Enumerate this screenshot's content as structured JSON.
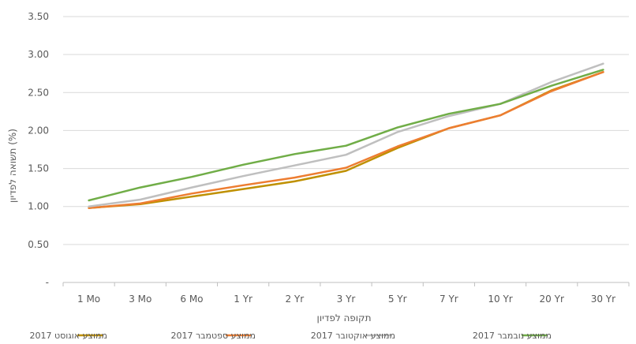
{
  "chart_data": {
    "type": "line",
    "xlabel": "תקופה לפדיון",
    "ylabel": "תשואה לפדיון (%)",
    "categories": [
      "1 Mo",
      "3 Mo",
      "6 Mo",
      "1 Yr",
      "2 Yr",
      "3 Yr",
      "5 Yr",
      "7 Yr",
      "10 Yr",
      "20 Yr",
      "30 Yr"
    ],
    "ylim": [
      0,
      3.5
    ],
    "yticks": [
      0,
      0.5,
      1.0,
      1.5,
      2.0,
      2.5,
      3.0,
      3.5
    ],
    "ytick_labels": [
      "-",
      "0.50",
      "1.00",
      "1.50",
      "2.00",
      "2.50",
      "3.00",
      "3.50"
    ],
    "grid": true,
    "legend_position": "bottom",
    "series": [
      {
        "name": "ממוצע אוגוסט 2017",
        "color": "#BF9000",
        "values": [
          0.98,
          1.03,
          1.13,
          1.23,
          1.33,
          1.47,
          1.77,
          2.03,
          2.2,
          2.53,
          2.77
        ]
      },
      {
        "name": "ממוצע ספטמבר 2017",
        "color": "#ED7D31",
        "values": [
          0.98,
          1.04,
          1.17,
          1.28,
          1.38,
          1.51,
          1.79,
          2.03,
          2.2,
          2.52,
          2.77
        ]
      },
      {
        "name": "ממוצע אוקטובר 2017",
        "color": "#BFBFBF",
        "values": [
          1.0,
          1.09,
          1.25,
          1.4,
          1.54,
          1.68,
          1.98,
          2.19,
          2.35,
          2.64,
          2.88
        ]
      },
      {
        "name": "ממוצע נובמבר 2017",
        "color": "#70AD47",
        "values": [
          1.08,
          1.25,
          1.39,
          1.55,
          1.69,
          1.8,
          2.04,
          2.22,
          2.35,
          2.59,
          2.8
        ]
      }
    ]
  }
}
